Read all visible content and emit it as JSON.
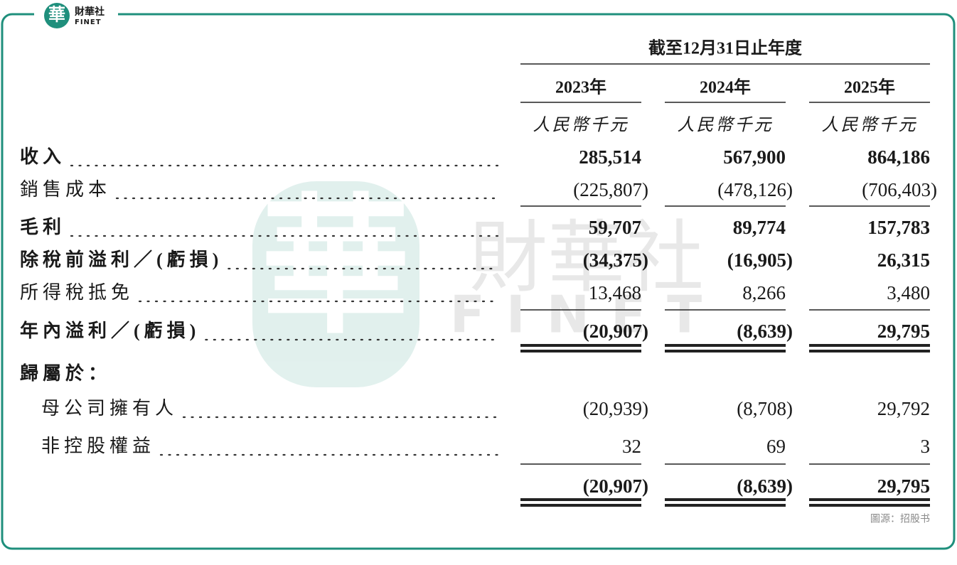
{
  "logo": {
    "seal": "華",
    "name": "財華社",
    "latin": "FINET"
  },
  "header": {
    "period": "截至12月31日止年度",
    "years": [
      "2023年",
      "2024年",
      "2025年"
    ],
    "unit": "人民幣千元"
  },
  "table": {
    "rows": [
      {
        "label": "收入",
        "values": [
          "285,514",
          "567,900",
          "864,186"
        ]
      },
      {
        "label": "銷售成本",
        "values": [
          "(225,807)",
          "(478,126)",
          "(706,403)"
        ]
      },
      {
        "label": "毛利",
        "values": [
          "59,707",
          "89,774",
          "157,783"
        ]
      },
      {
        "label": "除稅前溢利／(虧損)",
        "values": [
          "(34,375)",
          "(16,905)",
          "26,315"
        ]
      },
      {
        "label": "所得稅抵免",
        "values": [
          "13,468",
          "8,266",
          "3,480"
        ]
      },
      {
        "label": "年內溢利／(虧損)",
        "values": [
          "(20,907)",
          "(8,639)",
          "29,795"
        ]
      },
      {
        "label": "歸屬於："
      },
      {
        "label": "母公司擁有人",
        "values": [
          "(20,939)",
          "(8,708)",
          "29,792"
        ]
      },
      {
        "label": "非控股權益",
        "values": [
          "32",
          "69",
          "3"
        ]
      },
      {
        "values": [
          "(20,907)",
          "(8,639)",
          "29,795"
        ]
      }
    ]
  },
  "source": "圖源：招股书"
}
